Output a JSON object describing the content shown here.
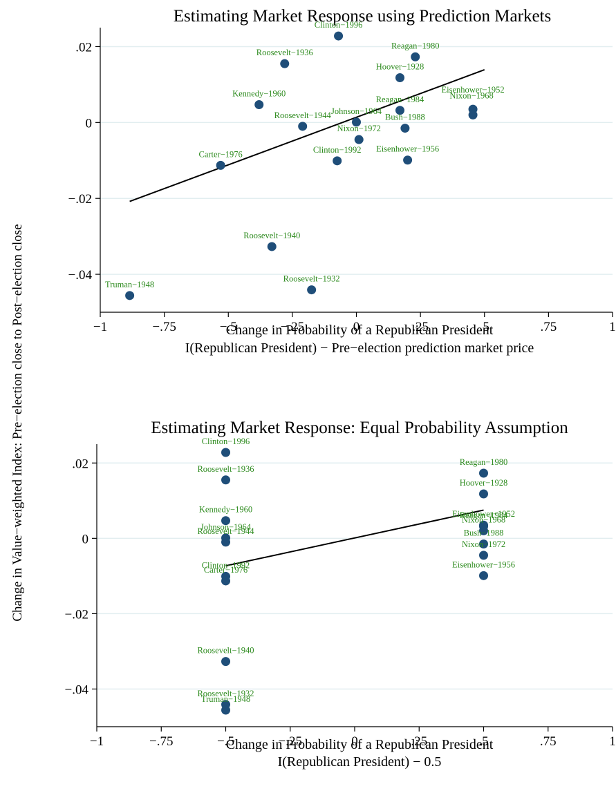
{
  "shared_ylabel": "Change in Value−weighted Index: Pre−election close to Post−election close",
  "style": {
    "marker": "#1f4e79",
    "label": "#2e8b1f",
    "grid": "#e2eef0",
    "line": "#000000"
  },
  "chart_data": [
    {
      "type": "scatter",
      "title": "Estimating Market Response using Prediction Markets",
      "xlabel": "Change in Probability of a Republican President",
      "xlabel2": "I(Republican President) − Pre−election prediction market price",
      "xlim": [
        -1,
        1
      ],
      "ylim": [
        -0.05,
        0.025
      ],
      "xticks": [
        -1,
        -0.75,
        -0.5,
        -0.25,
        0,
        0.25,
        0.5,
        0.75,
        1
      ],
      "xtick_labels": [
        "−1",
        "−.75",
        "−.5",
        "−.25",
        "0",
        ".25",
        ".5",
        ".75",
        "1"
      ],
      "yticks": [
        0.02,
        0,
        -0.02,
        -0.04
      ],
      "ytick_labels": [
        ".02",
        "0",
        "−.02",
        "−.04"
      ],
      "grid": true,
      "points": [
        {
          "label": "Clinton−1996",
          "x": -0.07,
          "y": 0.0228
        },
        {
          "label": "Reagan−1980",
          "x": 0.23,
          "y": 0.0173
        },
        {
          "label": "Roosevelt−1936",
          "x": -0.28,
          "y": 0.0155
        },
        {
          "label": "Hoover−1928",
          "x": 0.17,
          "y": 0.0118
        },
        {
          "label": "Kennedy−1960",
          "x": -0.38,
          "y": 0.0047
        },
        {
          "label": "Reagan−1984",
          "x": 0.17,
          "y": 0.0032
        },
        {
          "label": "Eisenhower−1952",
          "x": 0.455,
          "y": 0.0035
        },
        {
          "label": "Nixon−1968",
          "x": 0.455,
          "y": 0.002
        },
        {
          "label": "Johnson−1964",
          "x": 0.0,
          "y": 0.0001
        },
        {
          "label": "Roosevelt−1944",
          "x": -0.21,
          "y": -0.001
        },
        {
          "label": "Bush−1988",
          "x": 0.19,
          "y": -0.0015
        },
        {
          "label": "Nixon−1972",
          "x": 0.01,
          "y": -0.0045
        },
        {
          "label": "Carter−1976",
          "x": -0.53,
          "y": -0.0113
        },
        {
          "label": "Clinton−1992",
          "x": -0.075,
          "y": -0.0101
        },
        {
          "label": "Eisenhower−1956",
          "x": 0.2,
          "y": -0.0099
        },
        {
          "label": "Roosevelt−1940",
          "x": -0.33,
          "y": -0.0327
        },
        {
          "label": "Roosevelt−1932",
          "x": -0.175,
          "y": -0.0441
        },
        {
          "label": "Truman−1948",
          "x": -0.885,
          "y": -0.0456
        }
      ],
      "fit_line": {
        "x": [
          -0.885,
          0.5
        ],
        "y": [
          -0.0208,
          0.0139
        ]
      }
    },
    {
      "type": "scatter",
      "title": "Estimating Market Response: Equal Probability Assumption",
      "xlabel": "Change in Probability of a Republican President",
      "xlabel2": "I(Republican President) − 0.5",
      "xlim": [
        -1,
        1
      ],
      "ylim": [
        -0.05,
        0.025
      ],
      "xticks": [
        -1,
        -0.75,
        -0.5,
        -0.25,
        0,
        0.25,
        0.5,
        0.75,
        1
      ],
      "xtick_labels": [
        "−1",
        "−.75",
        "−.5",
        "−.25",
        "0",
        ".25",
        ".5",
        ".75",
        "1"
      ],
      "yticks": [
        0.02,
        0,
        -0.02,
        -0.04
      ],
      "ytick_labels": [
        ".02",
        "0",
        "−.02",
        "−.04"
      ],
      "grid": true,
      "points": [
        {
          "label": "Clinton−1996",
          "x": -0.5,
          "y": 0.0228
        },
        {
          "label": "Roosevelt−1936",
          "x": -0.5,
          "y": 0.0155
        },
        {
          "label": "Kennedy−1960",
          "x": -0.5,
          "y": 0.0047
        },
        {
          "label": "Johnson−1964",
          "x": -0.5,
          "y": 0.0001
        },
        {
          "label": "Roosevelt−1944",
          "x": -0.5,
          "y": -0.001
        },
        {
          "label": "Clinton−1992",
          "x": -0.5,
          "y": -0.0101
        },
        {
          "label": "Carter−1976",
          "x": -0.5,
          "y": -0.0113
        },
        {
          "label": "Roosevelt−1940",
          "x": -0.5,
          "y": -0.0327
        },
        {
          "label": "Roosevelt−1932",
          "x": -0.5,
          "y": -0.0441
        },
        {
          "label": "Truman−1948",
          "x": -0.5,
          "y": -0.0456
        },
        {
          "label": "Reagan−1980",
          "x": 0.5,
          "y": 0.0173
        },
        {
          "label": "Hoover−1928",
          "x": 0.5,
          "y": 0.0118
        },
        {
          "label": "Eisenhower−1952",
          "x": 0.5,
          "y": 0.0035
        },
        {
          "label": "Reagan−1984",
          "x": 0.5,
          "y": 0.0032
        },
        {
          "label": "Nixon−1968",
          "x": 0.5,
          "y": 0.002
        },
        {
          "label": "Bush−1988",
          "x": 0.5,
          "y": -0.0015
        },
        {
          "label": "Nixon−1972",
          "x": 0.5,
          "y": -0.0045
        },
        {
          "label": "Eisenhower−1956",
          "x": 0.5,
          "y": -0.0099
        }
      ],
      "fit_line": {
        "x": [
          -0.5,
          0.5
        ],
        "y": [
          -0.0073,
          0.0075
        ]
      }
    }
  ]
}
